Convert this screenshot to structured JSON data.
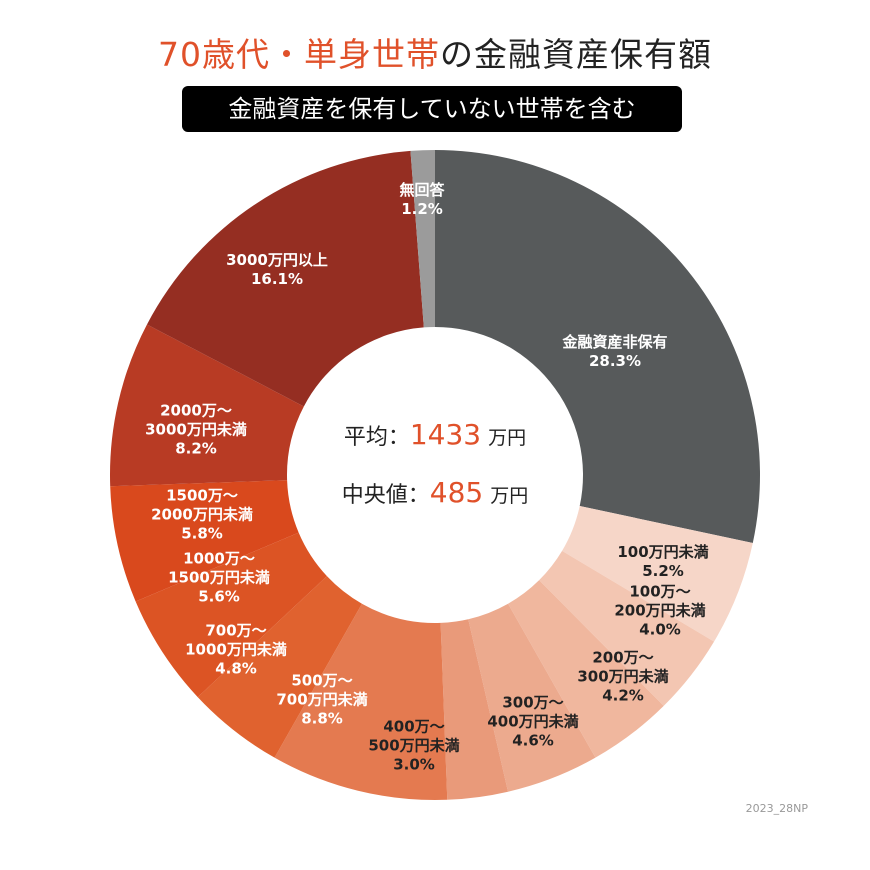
{
  "title": {
    "highlight": "70歳代・単身世帯",
    "rest": "の金融資産保有額"
  },
  "subtitle": "金融資産を保有していない世帯を含む",
  "center": {
    "mean_label": "平均：",
    "mean_value": "1433",
    "median_label": "中央値：",
    "median_value": "485",
    "unit": "万円"
  },
  "credit": "2023_28NP",
  "chart_data": {
    "type": "pie",
    "donut": true,
    "title": "70歳代・単身世帯の金融資産保有額",
    "categories": [
      "金融資産非保有",
      "100万円未満",
      "100万〜200万円未満",
      "200万〜300万円未満",
      "300万〜400万円未満",
      "400万〜500万円未満",
      "500万〜700万円未満",
      "700万〜1000万円未満",
      "1000万〜1500万円未満",
      "1500万〜2000万円未満",
      "2000万〜3000万円未満",
      "3000万円以上",
      "無回答"
    ],
    "values": [
      28.3,
      5.2,
      4.0,
      4.2,
      4.6,
      3.0,
      8.8,
      4.8,
      5.6,
      5.8,
      8.2,
      16.1,
      1.2
    ],
    "labels": [
      [
        "金融資産非保有",
        "28.3%"
      ],
      [
        "100万円未満",
        "5.2%"
      ],
      [
        "100万〜",
        "200万円未満",
        "4.0%"
      ],
      [
        "200万〜",
        "300万円未満",
        "4.2%"
      ],
      [
        "300万〜",
        "400万円未満",
        "4.6%"
      ],
      [
        "400万〜",
        "500万円未満",
        "3.0%"
      ],
      [
        "500万〜",
        "700万円未満",
        "8.8%"
      ],
      [
        "700万〜",
        "1000万円未満",
        "4.8%"
      ],
      [
        "1000万〜",
        "1500万円未満",
        "5.6%"
      ],
      [
        "1500万〜",
        "2000万円未満",
        "5.8%"
      ],
      [
        "2000万〜",
        "3000万円未満",
        "8.2%"
      ],
      [
        "3000万円以上",
        "16.1%"
      ],
      [
        "無回答",
        "1.2%"
      ]
    ],
    "colors": [
      "#575a5b",
      "#f6d6c8",
      "#f3c6b2",
      "#f0b79e",
      "#ecaa8e",
      "#e99a7a",
      "#e47a50",
      "#e0622f",
      "#dc5424",
      "#d9491d",
      "#b83b24",
      "#952e22",
      "#9b9b9b"
    ],
    "unit": "%"
  }
}
